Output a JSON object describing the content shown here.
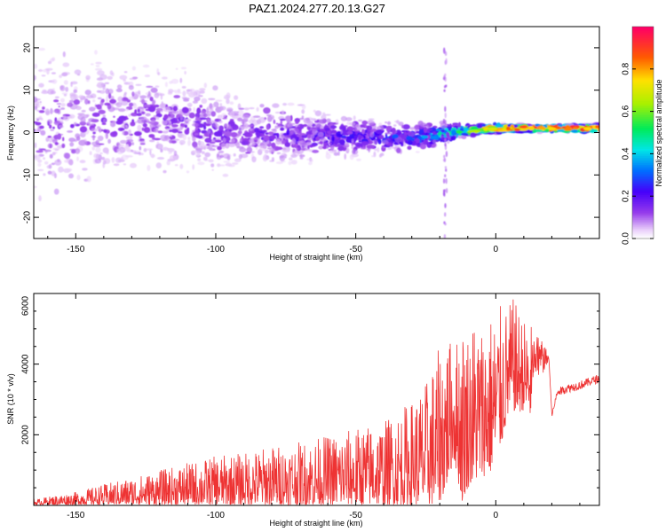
{
  "title": "PAZ1.2024.277.20.13.G27",
  "colors": {
    "snr_line": "#ee3333",
    "frame": "#000000"
  },
  "chart_data": [
    {
      "type": "heatmap",
      "title": "",
      "xlabel": "Height of straight line (km)",
      "ylabel": "Frequency (Hz)",
      "xlim": [
        -165,
        37
      ],
      "ylim": [
        -25,
        25
      ],
      "xticks": [
        -150,
        -100,
        -50,
        0
      ],
      "yticks": [
        -20,
        -10,
        0,
        10,
        20
      ],
      "colorscale": "rainbow (white-purple-blue-cyan-green-yellow-red)",
      "colorbar": {
        "label": "Normalized spectral amplitude",
        "range": [
          0,
          1
        ],
        "ticks": [
          0.0,
          0.2,
          0.4,
          0.6,
          0.8
        ]
      },
      "ridge": {
        "x": [
          -165,
          -150,
          -130,
          -110,
          -100,
          -80,
          -60,
          -40,
          -25,
          -18,
          -10,
          0,
          10,
          20,
          30,
          37
        ],
        "center_hz": [
          2,
          2,
          3,
          3,
          0,
          0,
          -1,
          -1,
          -1,
          0,
          0.5,
          1,
          1,
          1,
          1,
          1
        ],
        "spread_hz": [
          24,
          22,
          18,
          15,
          12,
          10,
          7,
          5,
          4,
          3,
          2,
          1.5,
          1.2,
          1.2,
          1.2,
          1.2
        ],
        "peak_amplitude": [
          0.12,
          0.12,
          0.13,
          0.14,
          0.15,
          0.17,
          0.2,
          0.26,
          0.33,
          0.45,
          0.6,
          0.8,
          0.85,
          0.88,
          0.9,
          0.9
        ]
      }
    },
    {
      "type": "line",
      "title": "",
      "xlabel": "Height of straight line (km)",
      "ylabel": "SNR (10 * v/v)",
      "xlim": [
        -165,
        37
      ],
      "ylim": [
        0,
        6000
      ],
      "xticks": [
        -150,
        -100,
        -50,
        0
      ],
      "yticks": [
        2000,
        4000,
        6000
      ],
      "series": [
        {
          "x": [
            -165,
            -160,
            -150,
            -140,
            -130,
            -120,
            -110,
            -100,
            -90,
            -80,
            -70,
            -60,
            -50,
            -40,
            -30,
            -25,
            -20,
            -18,
            -15,
            -12,
            -10,
            -7,
            -5,
            -2,
            0,
            2,
            4,
            6,
            8,
            10,
            12,
            15,
            17,
            19,
            20,
            22,
            25,
            30,
            37
          ],
          "y": [
            80,
            100,
            150,
            250,
            350,
            450,
            550,
            650,
            700,
            800,
            850,
            900,
            1000,
            1100,
            1300,
            1700,
            2300,
            2700,
            2900,
            2700,
            2800,
            3100,
            3000,
            3200,
            3400,
            3700,
            4000,
            4300,
            4100,
            4000,
            3800,
            3900,
            4000,
            4100,
            2500,
            3200,
            3300,
            3400,
            3600
          ],
          "envelope": [
            160,
            250,
            380,
            600,
            800,
            1000,
            1200,
            1400,
            1500,
            1700,
            1800,
            2000,
            2200,
            2400,
            3000,
            3500,
            4500,
            5000,
            4500,
            5300,
            5100,
            5500,
            5200,
            5500,
            5400,
            5700,
            5600,
            5900,
            5600,
            5300,
            5100,
            5400,
            5000,
            4300,
            2700,
            3100,
            3200,
            3300,
            3500
          ]
        }
      ]
    }
  ]
}
